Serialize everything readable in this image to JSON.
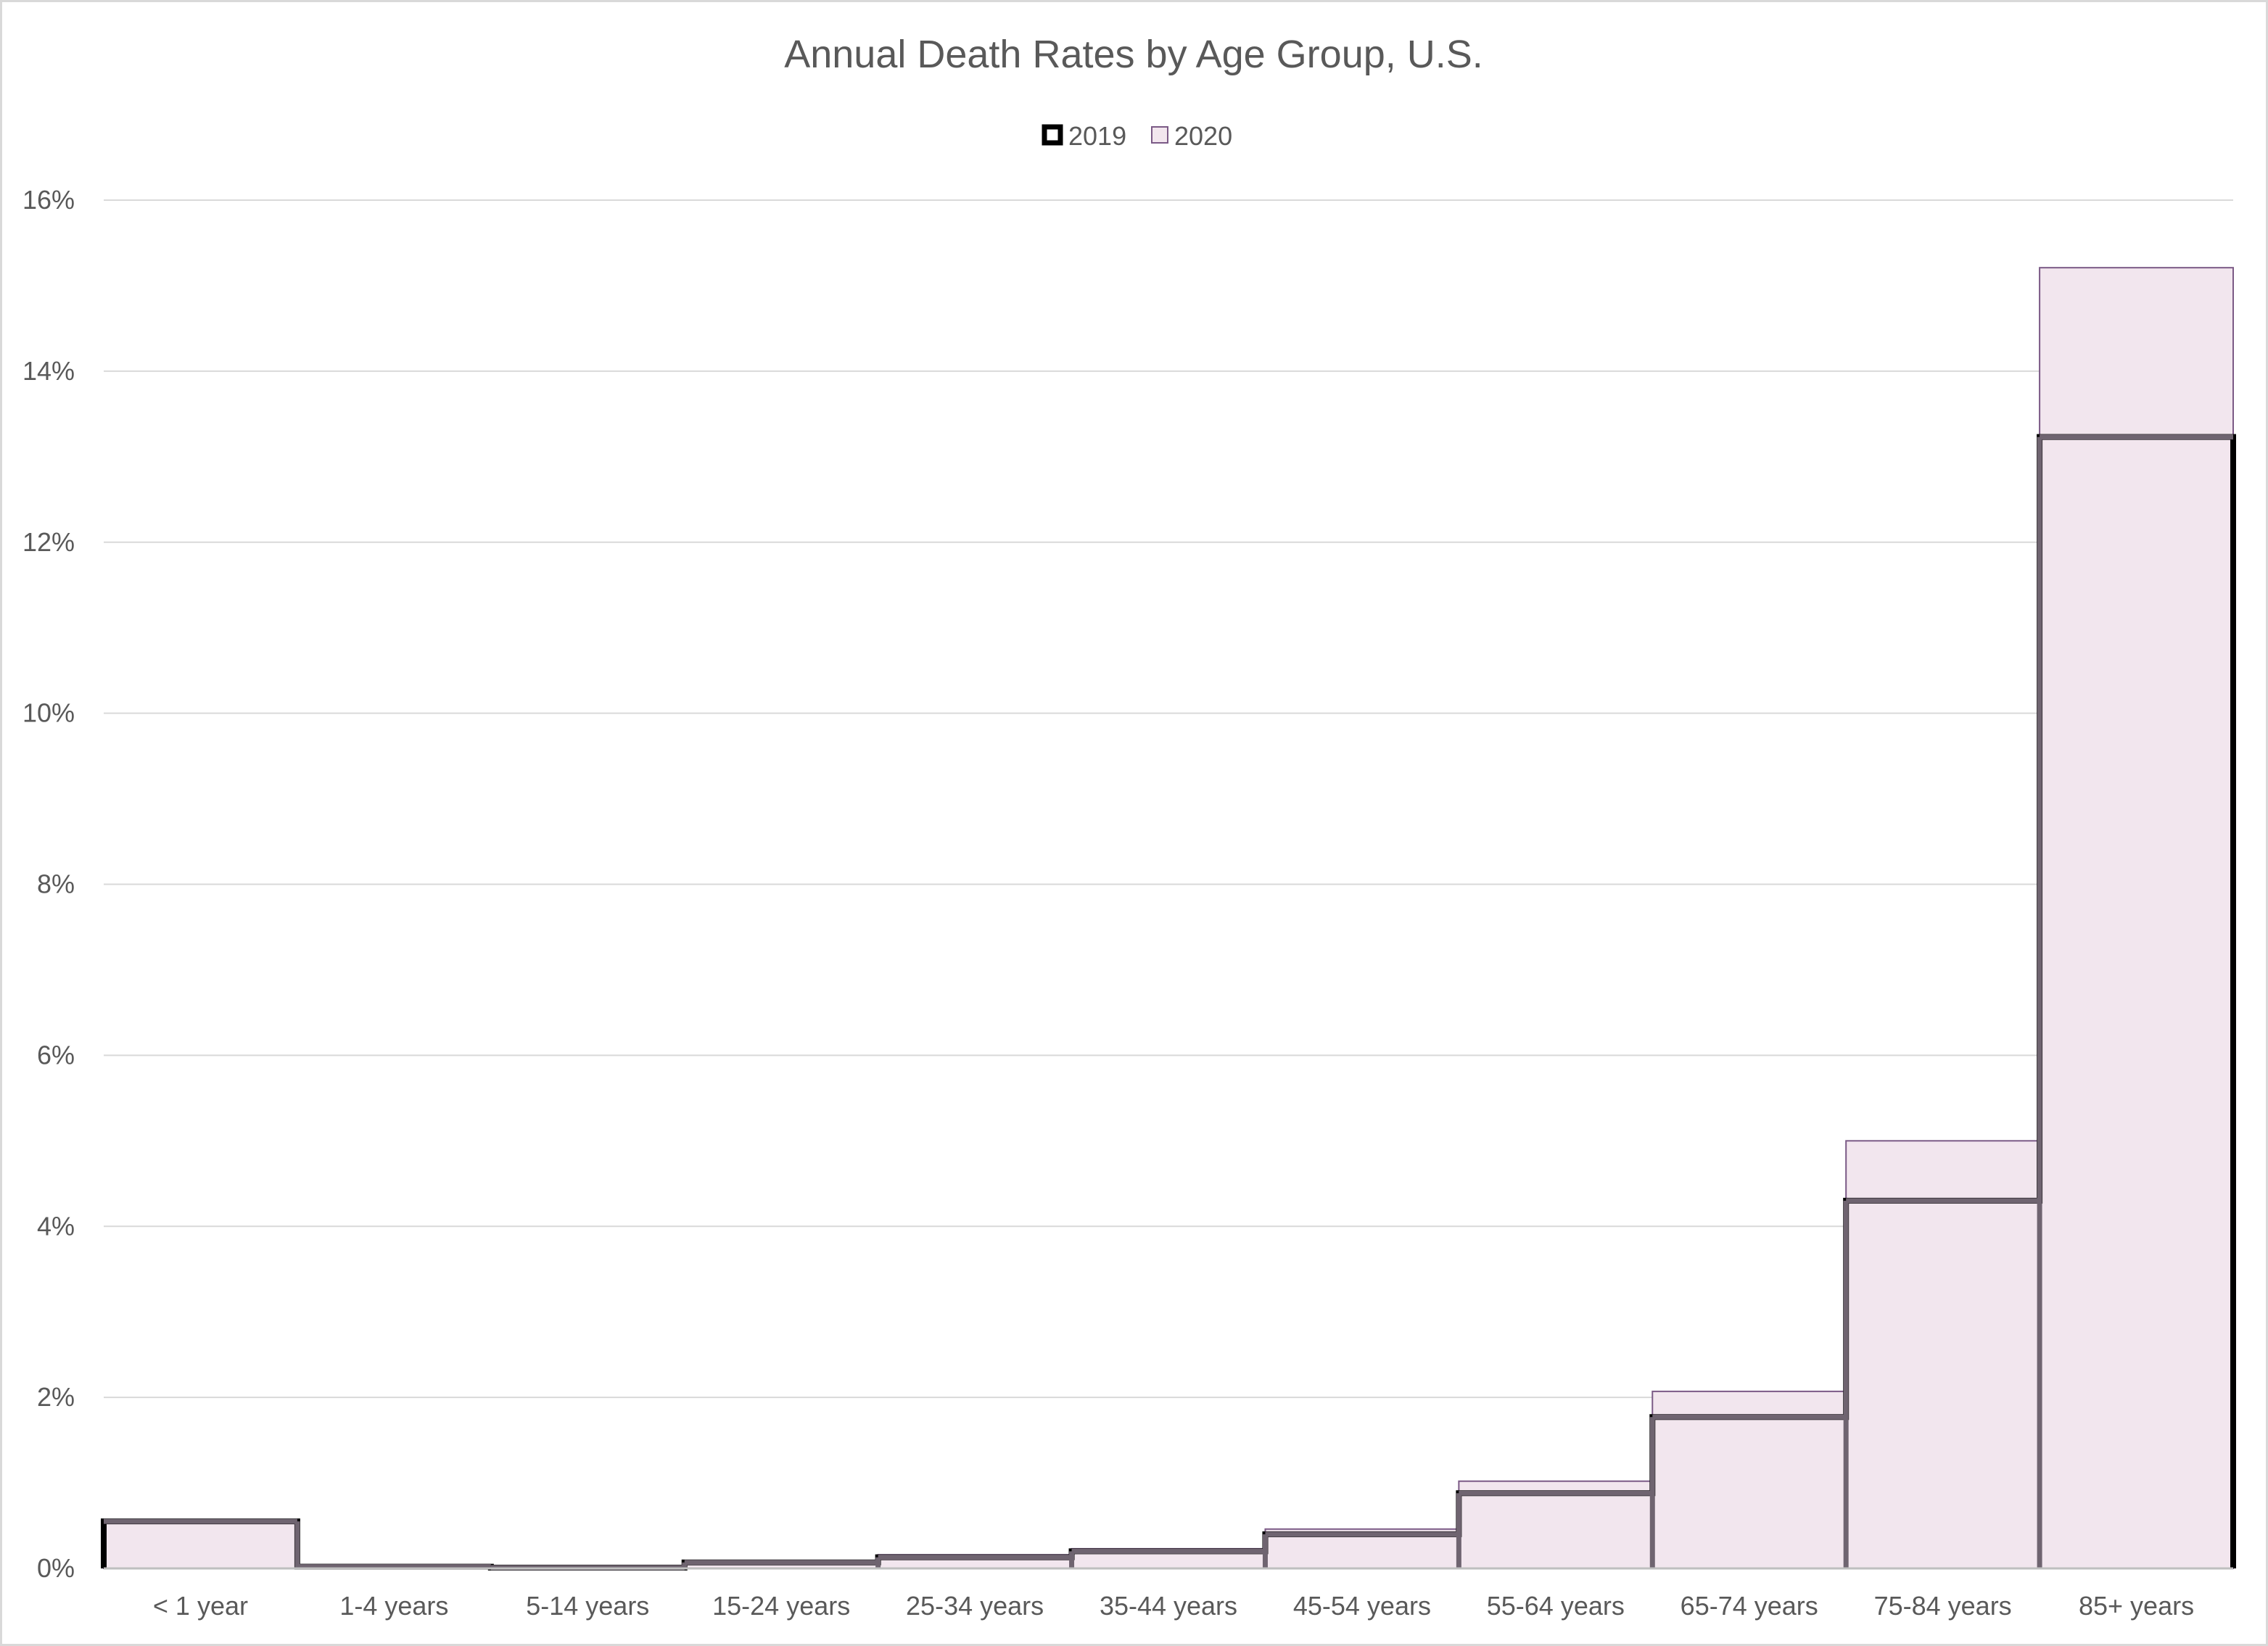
{
  "chart_data": {
    "type": "bar",
    "title": "Annual Death Rates by Age Group, U.S.",
    "xlabel": "",
    "ylabel": "",
    "categories": [
      "< 1 year",
      "1-4 years",
      "5-14 years",
      "15-24 years",
      "25-34 years",
      "35-44 years",
      "45-54 years",
      "55-64 years",
      "65-74 years",
      "75-84 years",
      "85+ years"
    ],
    "series": [
      {
        "name": "2019",
        "values": [
          0.55,
          0.02,
          0.01,
          0.07,
          0.13,
          0.2,
          0.4,
          0.88,
          1.77,
          4.3,
          13.23
        ],
        "color": "#000000",
        "style": "outline"
      },
      {
        "name": "2020",
        "values": [
          0.53,
          0.02,
          0.01,
          0.09,
          0.16,
          0.23,
          0.46,
          1.02,
          2.07,
          5.0,
          15.21
        ],
        "color": "#f2e6ee",
        "border": "#7b5a86",
        "style": "filled"
      }
    ],
    "ylim": [
      0,
      16
    ],
    "yticks": [
      0,
      2,
      4,
      6,
      8,
      10,
      12,
      14,
      16
    ],
    "ytick_labels": [
      "0%",
      "2%",
      "4%",
      "6%",
      "8%",
      "10%",
      "12%",
      "14%",
      "16%"
    ],
    "grid": true,
    "legend_position": "top"
  }
}
